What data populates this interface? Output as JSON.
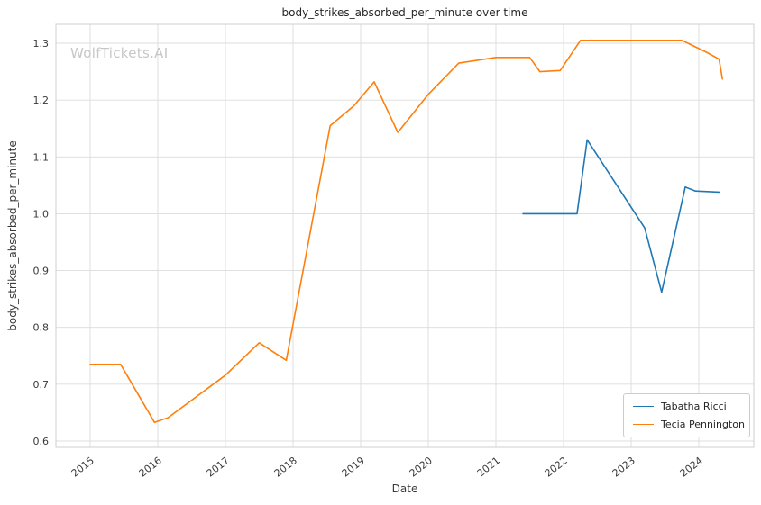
{
  "watermark": "WolfTickets.AI",
  "chart_data": {
    "type": "line",
    "title": "body_strikes_absorbed_per_minute over time",
    "xlabel": "Date",
    "ylabel": "body_strikes_absorbed_per_minute",
    "xlim": [
      2014.5,
      2024.8
    ],
    "ylim": [
      0.585,
      1.333
    ],
    "xticks": [
      2015,
      2016,
      2017,
      2018,
      2019,
      2020,
      2021,
      2022,
      2023,
      2024
    ],
    "yticks": [
      0.6,
      0.7,
      0.8,
      0.9,
      1.0,
      1.1,
      1.2,
      1.3
    ],
    "grid": true,
    "legend_position": "lower right",
    "colors": {
      "grid": "#dcdcdc",
      "border": "#cfcfcf",
      "tick_text": "#3a3a3a"
    },
    "series": [
      {
        "name": "Tabatha Ricci",
        "color": "#1f77b4",
        "x": [
          2021.4,
          2022.2,
          2022.35,
          2023.2,
          2023.45,
          2023.8,
          2023.95,
          2024.3
        ],
        "y": [
          1.0,
          1.0,
          1.13,
          0.975,
          0.862,
          1.047,
          1.04,
          1.038
        ]
      },
      {
        "name": "Tecia Pennington",
        "color": "#ff7f0e",
        "x": [
          2015.0,
          2015.45,
          2015.95,
          2016.15,
          2017.0,
          2017.5,
          2017.9,
          2018.55,
          2018.9,
          2019.2,
          2019.55,
          2020.0,
          2020.45,
          2021.0,
          2021.5,
          2021.65,
          2021.95,
          2022.25,
          2023.75,
          2024.1,
          2024.3,
          2024.35
        ],
        "y": [
          0.735,
          0.735,
          0.633,
          0.641,
          0.716,
          0.773,
          0.742,
          1.155,
          1.19,
          1.232,
          1.143,
          1.21,
          1.265,
          1.275,
          1.275,
          1.25,
          1.252,
          1.305,
          1.305,
          1.285,
          1.272,
          1.237
        ]
      }
    ]
  }
}
